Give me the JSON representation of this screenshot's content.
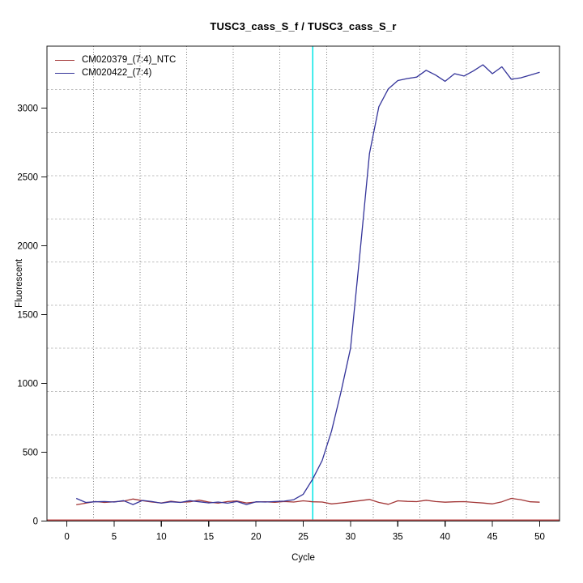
{
  "figure": {
    "background": "#ffffff"
  },
  "chart_data": {
    "type": "line",
    "title": "TUSC3_cass_S_f / TUSC3_cass_S_r",
    "xlabel": "Cycle",
    "ylabel": "Fluorescent",
    "x_range": [
      -2.1,
      52.1
    ],
    "y_range": [
      0,
      3450
    ],
    "x_ticks": [
      0,
      5,
      10,
      15,
      20,
      25,
      30,
      35,
      40,
      45,
      50
    ],
    "y_ticks": [
      0,
      500,
      1000,
      1500,
      2000,
      2500,
      3000
    ],
    "grid": {
      "nx": 11,
      "ny": 11,
      "vertical_style": "dotted",
      "horizontal_style": "dashed"
    },
    "legend_position": "top-left",
    "x": [
      1,
      2,
      3,
      4,
      5,
      6,
      7,
      8,
      9,
      10,
      11,
      12,
      13,
      14,
      15,
      16,
      17,
      18,
      19,
      20,
      21,
      22,
      23,
      24,
      25,
      26,
      27,
      28,
      29,
      30,
      31,
      32,
      33,
      34,
      35,
      36,
      37,
      38,
      39,
      40,
      41,
      42,
      43,
      44,
      45,
      46,
      47,
      48,
      49,
      50
    ],
    "series": [
      {
        "name": "CM020379_(7:4)_NTC",
        "color": "#a23535",
        "values": [
          118,
          130,
          142,
          135,
          140,
          145,
          160,
          148,
          138,
          132,
          144,
          136,
          140,
          152,
          138,
          130,
          142,
          146,
          132,
          138,
          140,
          136,
          142,
          138,
          147,
          140,
          138,
          125,
          132,
          140,
          148,
          157,
          135,
          122,
          147,
          143,
          141,
          151,
          142,
          137,
          140,
          141,
          136,
          131,
          125,
          140,
          165,
          155,
          140,
          137
        ]
      },
      {
        "name": "CM020422_(7:4)",
        "color": "#34349a",
        "values": [
          165,
          135,
          140,
          142,
          138,
          148,
          120,
          150,
          142,
          130,
          140,
          135,
          148,
          140,
          132,
          138,
          130,
          142,
          120,
          140,
          138,
          142,
          145,
          155,
          195,
          305,
          440,
          655,
          940,
          1255,
          1950,
          2670,
          3010,
          3140,
          3200,
          3215,
          3225,
          3275,
          3240,
          3195,
          3250,
          3233,
          3270,
          3315,
          3250,
          3300,
          3210,
          3220,
          3240,
          3260
        ]
      }
    ],
    "reference_lines": {
      "vertical_cyan_x": 26,
      "horizontal_red_y": 0
    }
  },
  "colors": {
    "cyan_line": "#00e6e6",
    "zero_line": "#c05050",
    "grid_vertical": "#7d7d7d",
    "grid_horizontal": "#bfbfbf",
    "box_border": "#1a1a1a",
    "tick": "#1a1a1a",
    "text": "#000000"
  }
}
